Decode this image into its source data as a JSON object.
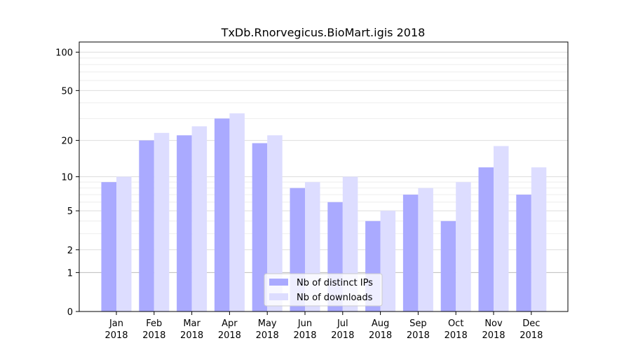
{
  "chart_data": {
    "type": "bar",
    "title": "TxDb.Rnorvegicus.BioMart.igis 2018",
    "xlabel": "",
    "ylabel": "",
    "y_scale": "log(1+y)",
    "ylim": [
      0,
      120
    ],
    "grid": true,
    "legend_position": "bottom-center",
    "categories": [
      [
        "Jan",
        "2018"
      ],
      [
        "Feb",
        "2018"
      ],
      [
        "Mar",
        "2018"
      ],
      [
        "Apr",
        "2018"
      ],
      [
        "May",
        "2018"
      ],
      [
        "Jun",
        "2018"
      ],
      [
        "Jul",
        "2018"
      ],
      [
        "Aug",
        "2018"
      ],
      [
        "Sep",
        "2018"
      ],
      [
        "Oct",
        "2018"
      ],
      [
        "Nov",
        "2018"
      ],
      [
        "Dec",
        "2018"
      ]
    ],
    "y_ticks": [
      0,
      1,
      2,
      5,
      10,
      20,
      50,
      100
    ],
    "series": [
      {
        "name": "Nb of distinct IPs",
        "color": "#aaaaff",
        "values": [
          9,
          20,
          22,
          30,
          19,
          8,
          6,
          4,
          7,
          4,
          12,
          7
        ]
      },
      {
        "name": "Nb of downloads",
        "color": "#ddddff",
        "values": [
          10,
          23,
          26,
          33,
          22,
          9,
          10,
          5,
          8,
          9,
          18,
          12
        ]
      }
    ]
  }
}
